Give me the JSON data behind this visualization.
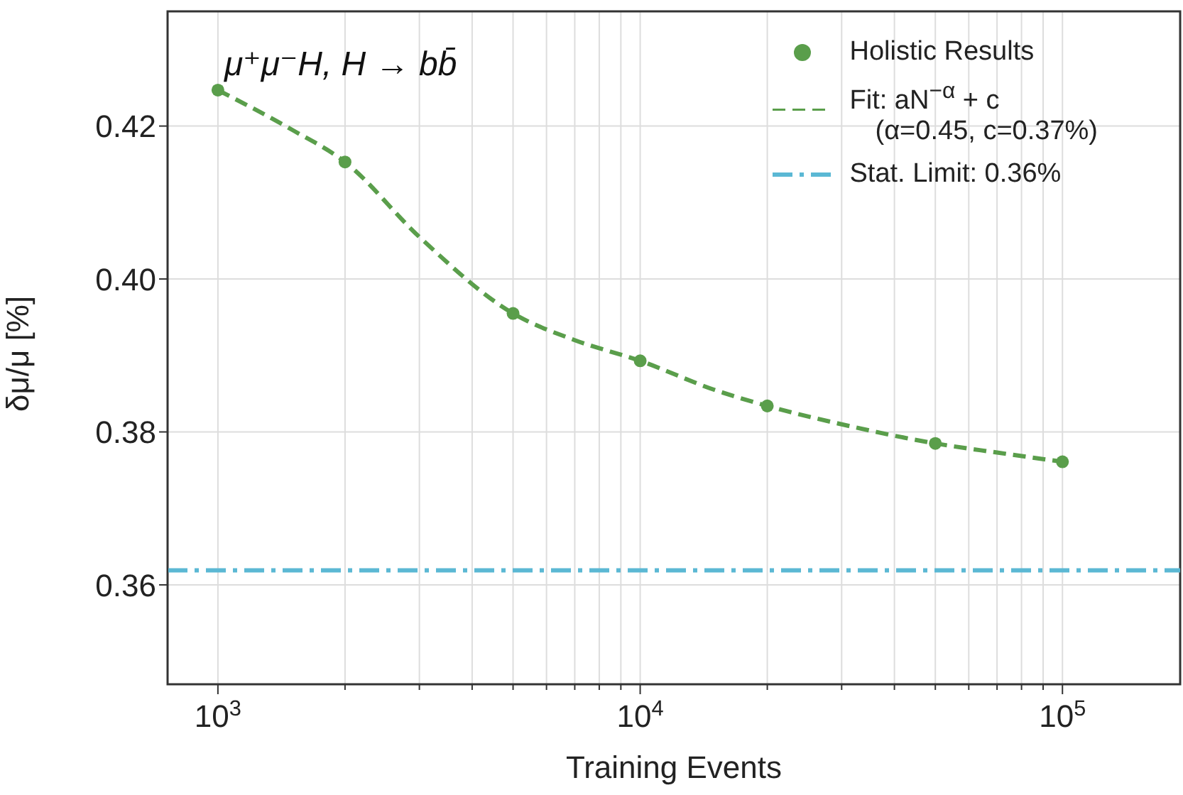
{
  "chart_data": {
    "type": "scatter",
    "xlabel": "Training Events",
    "ylabel": "δμ/μ [%]",
    "annotations": [
      "μ⁺μ⁻H, H → bb̄"
    ],
    "log": "x",
    "grid": true,
    "legend": "top right",
    "xlim": [
      760,
      190000
    ],
    "xticks": [
      {
        "value": 1000,
        "label": "10$^{3}$"
      },
      {
        "value": 2000,
        "label": null
      },
      {
        "value": 3000,
        "label": null
      },
      {
        "value": 4000,
        "label": null
      },
      {
        "value": 5000,
        "label": null
      },
      {
        "value": 6000,
        "label": null
      },
      {
        "value": 7000,
        "label": null
      },
      {
        "value": 8000,
        "label": null
      },
      {
        "value": 9000,
        "label": null
      },
      {
        "value": 10000,
        "label": "10$^{4}$"
      },
      {
        "value": 20000,
        "label": null
      },
      {
        "value": 30000,
        "label": null
      },
      {
        "value": 40000,
        "label": null
      },
      {
        "value": 50000,
        "label": null
      },
      {
        "value": 60000,
        "label": null
      },
      {
        "value": 70000,
        "label": null
      },
      {
        "value": 80000,
        "label": null
      },
      {
        "value": 90000,
        "label": null
      },
      {
        "value": 100000,
        "label": "10$^{5}$"
      }
    ],
    "ylim": [
      0.347,
      0.435
    ],
    "yticks": [
      0.36,
      0.38,
      {
        "value": 0.4,
        "label": "0.40"
      },
      0.42
    ],
    "series": [
      {
        "name": "Holistic Results",
        "marker": "circle",
        "color": "#5a9e4b",
        "x": [
          1000,
          2000,
          5000,
          10000,
          20000,
          50000,
          100000
        ],
        "values": [
          0.4247,
          0.4153,
          0.3955,
          0.3893,
          0.3834,
          0.3785,
          0.3761
        ]
      },
      {
        "name": "Fit: aN$^{−α}$ + c\n(α=0.45, c=0.37%)",
        "type": "line",
        "line_style": "dashed",
        "marker": "none",
        "color": "#5a9e4b",
        "x": [
          1000,
          1500,
          2000,
          3000,
          5000,
          7000,
          10000,
          15000,
          20000,
          30000,
          50000,
          70000,
          100000
        ],
        "values": [
          0.4247,
          0.4195,
          0.4153,
          0.4055,
          0.3955,
          0.392,
          0.3893,
          0.3855,
          0.3834,
          0.381,
          0.3785,
          0.3773,
          0.3761
        ]
      }
    ],
    "ref_lines": [
      {
        "axis": "y",
        "value": 0.3619,
        "label": "Stat. Limit: 0.36%",
        "color": "#5bb8d4",
        "line_style": "dashdot"
      }
    ]
  }
}
